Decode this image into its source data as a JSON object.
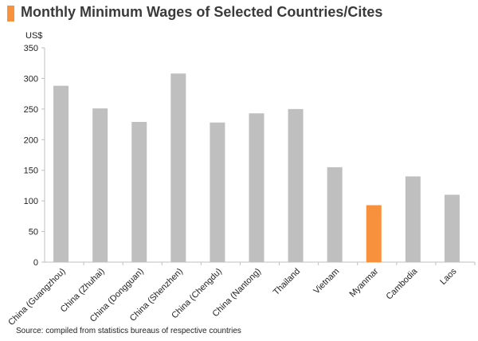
{
  "colors": {
    "accent": "#F7913D",
    "bar_default": "#BFBFBF",
    "bar_highlight": "#F7913D",
    "axis": "#BFBFBF",
    "text": "#222222"
  },
  "chart_data": {
    "type": "bar",
    "title": "Monthly Minimum Wages of Selected Countries/Cites",
    "unit_label": "US$",
    "xlabel": "",
    "ylabel": "US$",
    "ylim": [
      0,
      350
    ],
    "yticks": [
      0,
      50,
      100,
      150,
      200,
      250,
      300,
      350
    ],
    "grid": false,
    "legend": "none",
    "categories": [
      "China (Guangzhou)",
      "China (Zhuhai)",
      "China (Dongguan)",
      "China (Shenzhen)",
      "China (Chengdu)",
      "China (Nantong)",
      "Thailand",
      "Vietnam",
      "Myanmar",
      "Cambodia",
      "Laos"
    ],
    "values": [
      288,
      251,
      229,
      308,
      228,
      243,
      250,
      155,
      93,
      140,
      110
    ],
    "highlight": [
      "Myanmar"
    ]
  },
  "source": "Source: compiled from statistics bureaus  of respective countries"
}
